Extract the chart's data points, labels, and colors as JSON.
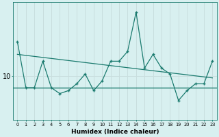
{
  "xlabel": "Humidex (Indice chaleur)",
  "background_color": "#d8f0f0",
  "line_color": "#1a7a6e",
  "grid_color": "#c8dede",
  "x_values": [
    0,
    1,
    2,
    3,
    4,
    5,
    6,
    7,
    8,
    9,
    10,
    11,
    12,
    13,
    14,
    15,
    16,
    17,
    18,
    19,
    20,
    21,
    22,
    23
  ],
  "y_values": [
    13.5,
    8.8,
    8.8,
    11.5,
    8.8,
    8.2,
    8.5,
    9.2,
    10.2,
    8.5,
    9.5,
    11.5,
    11.5,
    12.5,
    16.5,
    10.8,
    12.2,
    10.8,
    10.2,
    7.5,
    8.5,
    9.2,
    9.2,
    11.5
  ],
  "hline_y": 8.8,
  "trend_x": [
    0,
    23
  ],
  "trend_y": [
    12.2,
    9.8
  ],
  "ylim": [
    5.5,
    17.5
  ],
  "ytick_values": [
    10
  ],
  "xlim": [
    -0.5,
    23.5
  ]
}
